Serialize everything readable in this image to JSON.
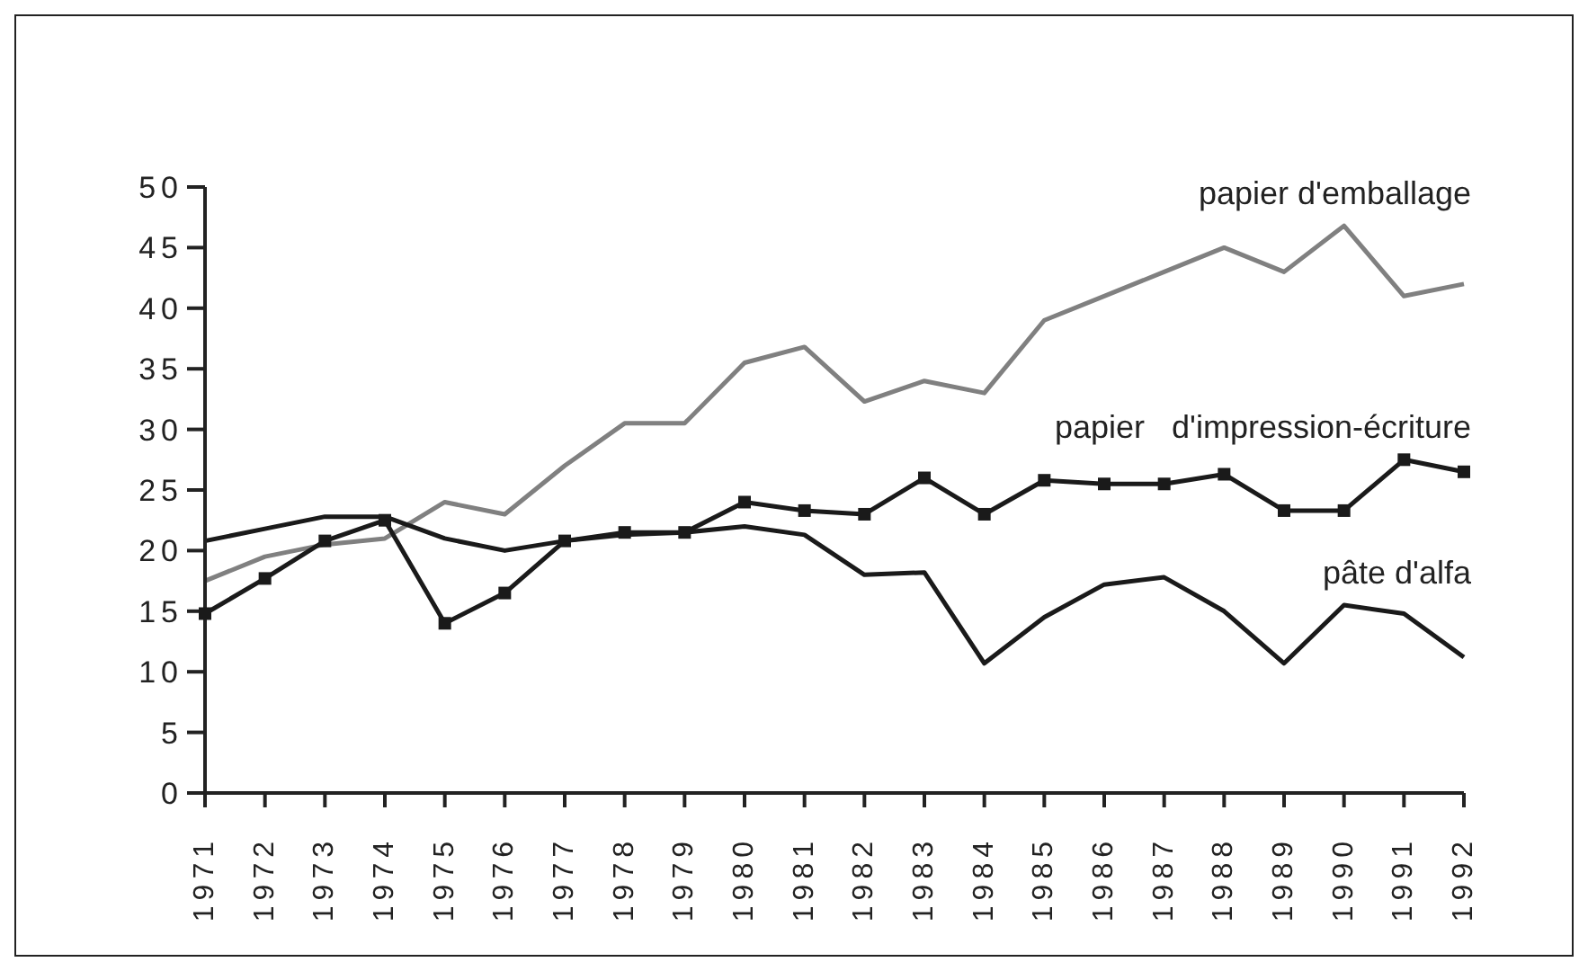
{
  "chart_data": {
    "type": "line",
    "categories": [
      "1971",
      "1972",
      "1973",
      "1974",
      "1975",
      "1976",
      "1977",
      "1978",
      "1979",
      "1980",
      "1981",
      "1982",
      "1983",
      "1984",
      "1985",
      "1986",
      "1987",
      "1988",
      "1989",
      "1990",
      "1991",
      "1992"
    ],
    "series": [
      {
        "name": "papier d'emballage",
        "color": "#808080",
        "marker": "none",
        "values": [
          17.5,
          19.5,
          20.5,
          21,
          24,
          23,
          27,
          30.5,
          30.5,
          35.5,
          36.8,
          32.3,
          34,
          33,
          39,
          41,
          43,
          45,
          43,
          46.8,
          41,
          42
        ]
      },
      {
        "name": "papier   d'impression-écriture",
        "color": "#1a1a1a",
        "marker": "square",
        "values": [
          14.8,
          17.7,
          20.8,
          22.5,
          14,
          16.5,
          20.8,
          21.5,
          21.5,
          24,
          23.3,
          23,
          26,
          23,
          25.8,
          25.5,
          25.5,
          26.3,
          23.3,
          23.3,
          27.5,
          26.5
        ]
      },
      {
        "name": "pâte d'alfa",
        "color": "#1a1a1a",
        "marker": "none",
        "values": [
          20.8,
          21.8,
          22.8,
          22.8,
          21,
          20,
          20.8,
          21.3,
          21.5,
          22,
          21.3,
          18,
          18.2,
          10.7,
          14.5,
          17.2,
          17.8,
          15,
          10.7,
          15.5,
          14.8,
          11.2
        ]
      }
    ],
    "ylim": [
      0,
      50
    ],
    "yticks": [
      0,
      5,
      10,
      15,
      20,
      25,
      30,
      35,
      40,
      45,
      50
    ],
    "grid": false,
    "legend": false
  }
}
